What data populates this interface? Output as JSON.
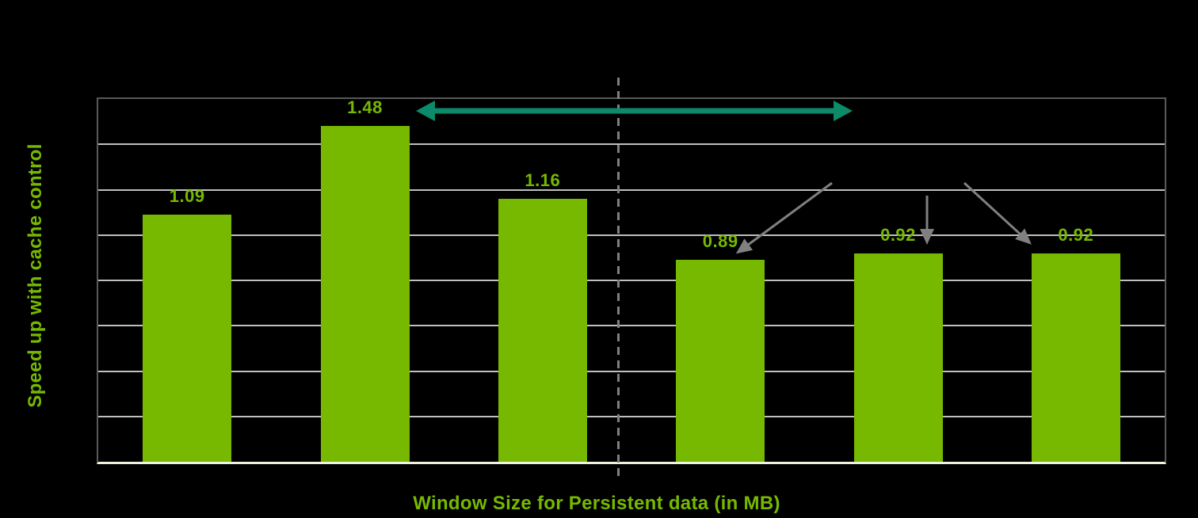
{
  "chart_data": {
    "type": "bar",
    "values": [
      1.09,
      1.48,
      1.16,
      0.89,
      0.92,
      0.92
    ],
    "labels": [
      "1.09",
      "1.48",
      "1.16",
      "0.89",
      "0.92",
      "0.92"
    ],
    "title": "",
    "xlabel": "Window Size for Persistent data (in MB)",
    "ylabel": "Speed up with cache control",
    "ylim": [
      0,
      1.6
    ],
    "grid_step": 0.2,
    "grid": true,
    "legend": "none",
    "x_tick_labels": [],
    "y_tick_labels": []
  },
  "colors": {
    "background": "#000000",
    "bar": "#76b900",
    "label": "#76b900",
    "axis_title": "#76b900",
    "grid": "#bfbfbf",
    "border": "#595959",
    "baseline": "#edf3dc",
    "divider": "#7f7f7f",
    "span_arrow": "#0d8a6a",
    "pointer_arrow": "#808080"
  }
}
